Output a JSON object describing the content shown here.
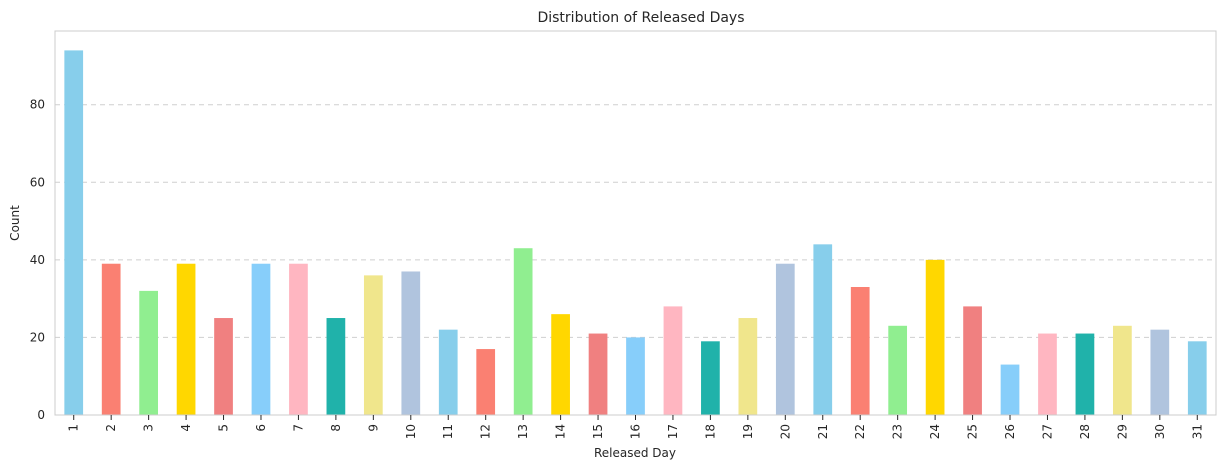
{
  "chart_data": {
    "type": "bar",
    "title": "Distribution of Released Days",
    "xlabel": "Released Day",
    "ylabel": "Count",
    "categories": [
      "1",
      "2",
      "3",
      "4",
      "5",
      "6",
      "7",
      "8",
      "9",
      "10",
      "11",
      "12",
      "13",
      "14",
      "15",
      "16",
      "17",
      "18",
      "19",
      "20",
      "21",
      "22",
      "23",
      "24",
      "25",
      "26",
      "27",
      "28",
      "29",
      "30",
      "31"
    ],
    "values": [
      94,
      39,
      32,
      39,
      25,
      39,
      39,
      25,
      36,
      37,
      22,
      17,
      43,
      26,
      21,
      20,
      28,
      19,
      25,
      39,
      44,
      33,
      23,
      40,
      28,
      13,
      21,
      21,
      23,
      22,
      19
    ],
    "ylim": [
      0,
      99
    ],
    "yticks": [
      0,
      20,
      40,
      60,
      80
    ],
    "grid": "horizontal dashed",
    "colors": [
      "#87CEEB",
      "#FA8072",
      "#90EE90",
      "#FFD700",
      "#F08080",
      "#87CEFA",
      "#FFB6C1",
      "#20B2AA",
      "#F0E68C",
      "#B0C4DE"
    ],
    "x_tick_rotation": 90
  }
}
